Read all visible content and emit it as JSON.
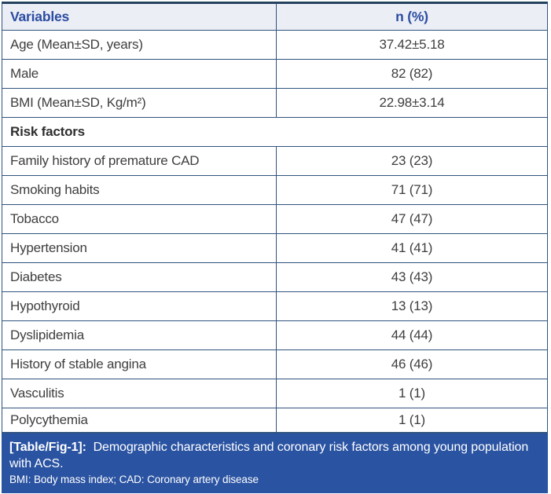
{
  "colors": {
    "accent_header_text": "#2b4da1",
    "border": "#2f537f",
    "border_dark": "#24425f",
    "header_bg": "#eceef6",
    "footer_bg": "#2a53a2",
    "body_text": "#3e3e3e"
  },
  "table": {
    "header": {
      "col1": "Variables",
      "col2": "n (%)"
    },
    "rows": [
      {
        "label": "Age (Mean±SD, years)",
        "value": "37.42±5.18"
      },
      {
        "label": "Male",
        "value": "82 (82)"
      },
      {
        "label": "BMI (Mean±SD, Kg/m²)",
        "value": "22.98±3.14"
      },
      {
        "label": "Risk factors",
        "span": true
      },
      {
        "label": "Family history of premature CAD",
        "value": "23 (23)"
      },
      {
        "label": "Smoking habits",
        "value": "71 (71)"
      },
      {
        "label": "Tobacco",
        "value": "47 (47)"
      },
      {
        "label": "Hypertension",
        "value": "41 (41)"
      },
      {
        "label": "Diabetes",
        "value": "43 (43)"
      },
      {
        "label": "Hypothyroid",
        "value": "13 (13)"
      },
      {
        "label": "Dyslipidemia",
        "value": "44 (44)"
      },
      {
        "label": "History of stable angina",
        "value": "46 (46)"
      },
      {
        "label": "Vasculitis",
        "value": "1 (1)"
      },
      {
        "label": "Polycythemia",
        "value": "1 (1)"
      }
    ]
  },
  "caption": {
    "tag": "[Table/Fig-1]:",
    "text": "Demographic characteristics and coronary risk factors among young population with ACS.",
    "footnote": "BMI: Body mass index; CAD: Coronary artery disease"
  }
}
